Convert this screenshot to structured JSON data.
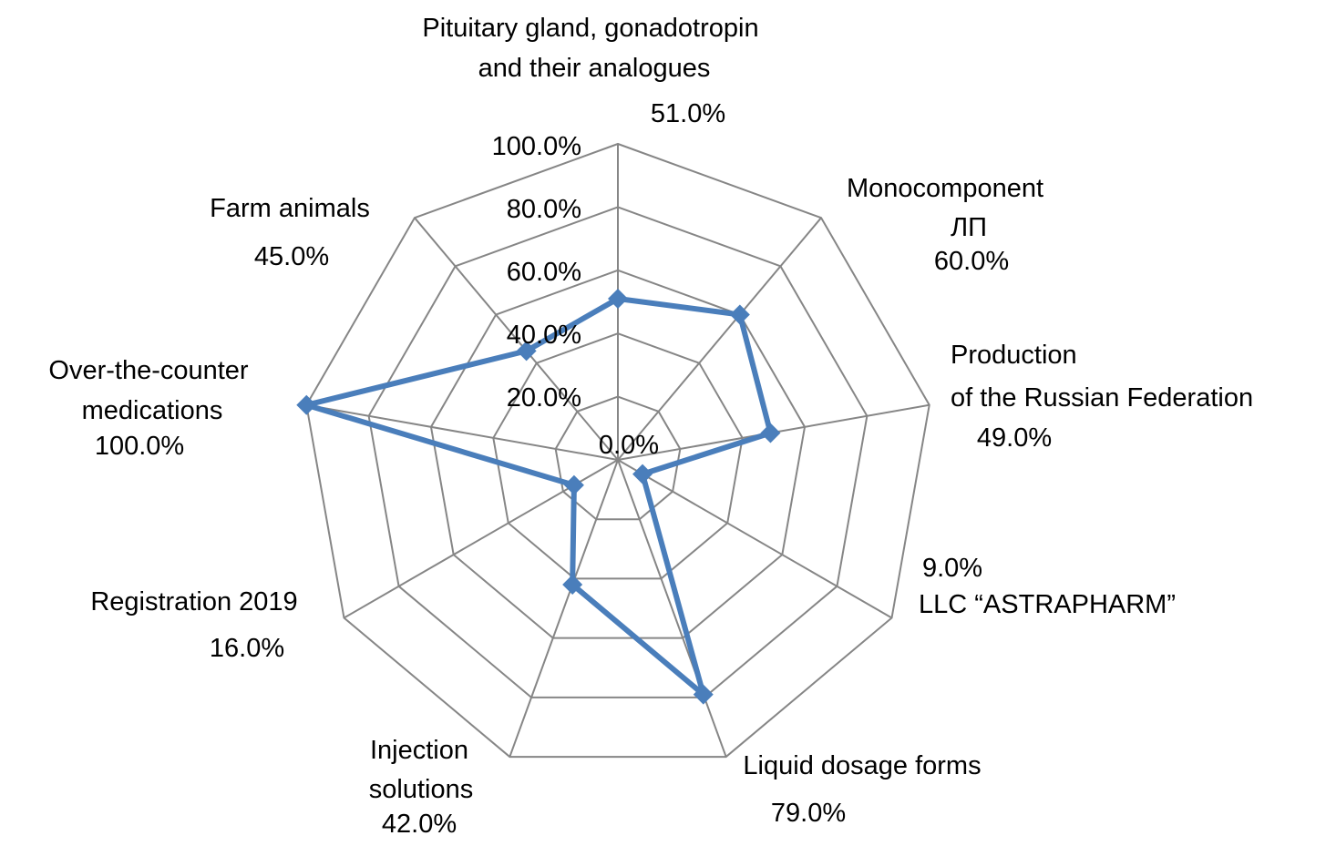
{
  "chart_data": {
    "type": "radar",
    "title": "",
    "categories": [
      [
        "Pituitary gland, gonadotropin",
        "and their analogues"
      ],
      [
        "Monocomponent",
        "ЛП"
      ],
      [
        "Production",
        "of the Russian Federation"
      ],
      [
        "LLC “ASTRAPHARM”"
      ],
      [
        "Liquid dosage forms"
      ],
      [
        "Injection",
        "solutions"
      ],
      [
        "Registration 2019"
      ],
      [
        "Over-the-counter",
        "medications"
      ],
      [
        "Farm animals"
      ]
    ],
    "values": [
      51.0,
      60.0,
      49.0,
      9.0,
      79.0,
      42.0,
      16.0,
      100.0,
      45.0
    ],
    "data_labels": [
      "51.0%",
      "60.0%",
      "49.0%",
      "9.0%",
      "79.0%",
      "42.0%",
      "16.0%",
      "100.0%",
      "45.0%"
    ],
    "rlim": [
      0,
      100
    ],
    "ticks": [
      "0.0%",
      "20.0%",
      "40.0%",
      "60.0%",
      "80.0%",
      "100.0%"
    ],
    "grid": true,
    "legend": "none",
    "series_color": "#4a7ebb",
    "grid_color": "#868686"
  }
}
